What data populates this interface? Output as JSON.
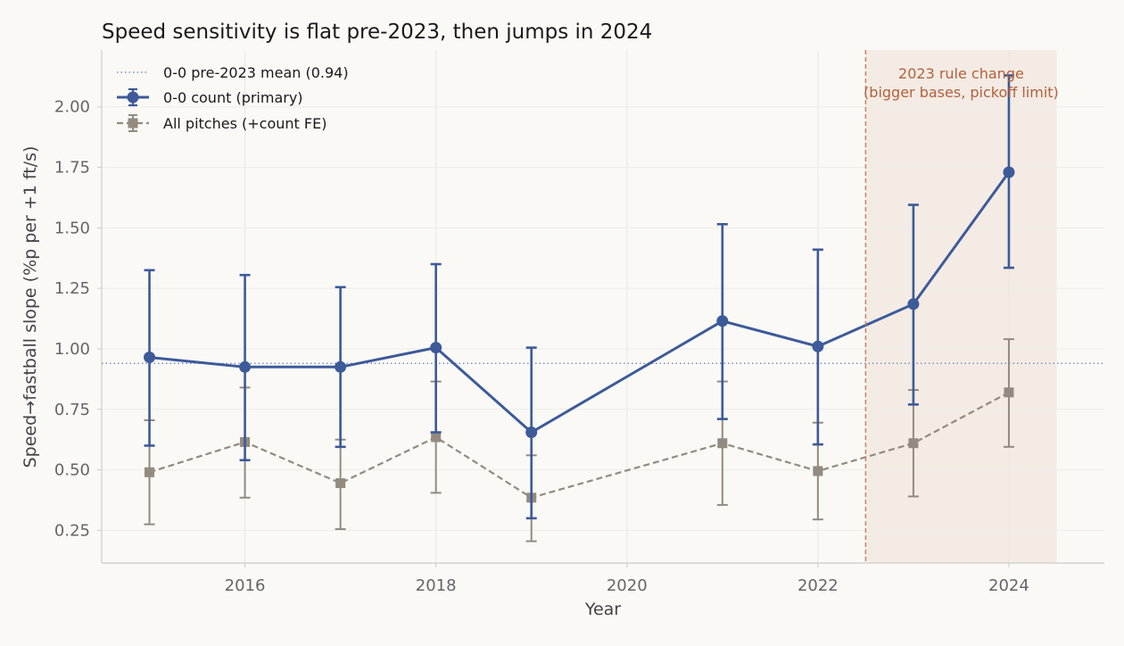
{
  "chart_data": {
    "type": "line",
    "title": "Speed sensitivity is flat pre-2023, then jumps in 2024",
    "xlabel": "Year",
    "ylabel": "Speed→fastball slope (%p per +1 ft/s)",
    "xlim": [
      2014.5,
      2025
    ],
    "ylim": [
      0.115,
      2.235
    ],
    "x_ticks": [
      2016,
      2018,
      2020,
      2022,
      2024
    ],
    "y_ticks": [
      0.25,
      0.5,
      0.75,
      1.0,
      1.25,
      1.5,
      1.75,
      2.0
    ],
    "y_tick_labels": [
      "0.25",
      "0.50",
      "0.75",
      "1.00",
      "1.25",
      "1.50",
      "1.75",
      "2.00"
    ],
    "grid": true,
    "legend_position": "top-left",
    "legend": [
      {
        "label": "0-0 pre-2023 mean (0.94)",
        "style": "dotted",
        "color": "#7b8fc4"
      },
      {
        "label": "0-0 count (primary)",
        "style": "solid-circle-errorbar",
        "color": "#3d5a99"
      },
      {
        "label": "All pitches (+count FE)",
        "style": "dashed-square-errorbar",
        "color": "#938a80"
      }
    ],
    "reference_line": {
      "y": 0.94,
      "color": "#7b8fc4"
    },
    "shaded_region": {
      "x_start": 2022.5,
      "x_end": 2024.5,
      "color": "#f3ebe4"
    },
    "vertical_line": {
      "x": 2022.5,
      "color": "#c87d5c"
    },
    "annotation": {
      "lines": [
        "2023 rule change",
        "(bigger bases, pickoff limit)"
      ],
      "x": 2023.5,
      "color": "#b5603b"
    },
    "series": [
      {
        "name": "0-0 count (primary)",
        "color": "#3d5a99",
        "marker": "circle",
        "line": "solid",
        "x": [
          2015,
          2016,
          2017,
          2018,
          2019,
          2021,
          2022,
          2023,
          2024
        ],
        "y": [
          0.965,
          0.925,
          0.925,
          1.005,
          0.655,
          1.115,
          1.01,
          1.185,
          1.73
        ],
        "y_low": [
          0.6,
          0.54,
          0.595,
          0.655,
          0.3,
          0.71,
          0.605,
          0.77,
          1.335
        ],
        "y_high": [
          1.325,
          1.305,
          1.255,
          1.35,
          1.005,
          1.515,
          1.41,
          1.595,
          2.13
        ]
      },
      {
        "name": "All pitches (+count FE)",
        "color": "#938a80",
        "marker": "square",
        "line": "dashed",
        "x": [
          2015,
          2016,
          2017,
          2018,
          2019,
          2021,
          2022,
          2023,
          2024
        ],
        "y": [
          0.49,
          0.615,
          0.445,
          0.635,
          0.385,
          0.61,
          0.495,
          0.61,
          0.82
        ],
        "y_low": [
          0.275,
          0.385,
          0.255,
          0.405,
          0.205,
          0.355,
          0.295,
          0.39,
          0.595
        ],
        "y_high": [
          0.705,
          0.84,
          0.625,
          0.865,
          0.56,
          0.865,
          0.695,
          0.83,
          1.04
        ]
      }
    ]
  }
}
